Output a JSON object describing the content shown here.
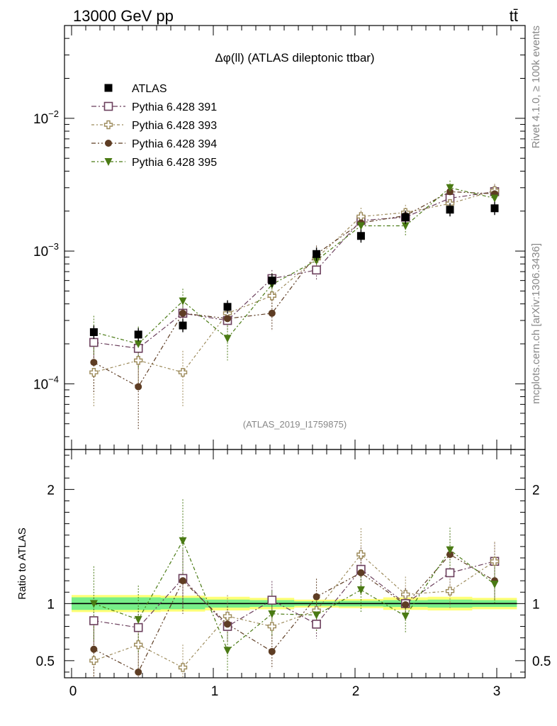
{
  "header": {
    "energy_label": "13000 GeV pp",
    "process_label": "tt̄"
  },
  "side_text": {
    "rivet": "Rivet 4.1.0, ≥ 100k events",
    "mcplots": "mcplots.cern.ch [arXiv:1306.3436]"
  },
  "chart_data": {
    "type": "scatter",
    "title": "Δφ(ll) (ATLAS dileptonic ttbar)",
    "watermark": "(ATLAS_2019_I1759875)",
    "xlabel": "",
    "ylabel_ratio": "Ratio to ATLAS",
    "xlim": [
      -0.05,
      3.2
    ],
    "ylim_main": [
      3.2e-05,
      0.05
    ],
    "ylim_ratio": [
      0.35,
      2.35
    ],
    "yscale_main": "log",
    "x_ticks": [
      "0",
      "1",
      "2",
      "3"
    ],
    "y_ticks_main": [
      "10^-4",
      "10^-3",
      "10^-2"
    ],
    "y_ticks_ratio": [
      "0.5",
      "1",
      "2"
    ],
    "legend_position": "top-left",
    "x": [
      0.157,
      0.471,
      0.785,
      1.1,
      1.414,
      1.728,
      2.042,
      2.356,
      2.67,
      2.985
    ],
    "bin_edges": [
      0.0,
      0.314,
      0.628,
      0.942,
      1.257,
      1.571,
      1.885,
      2.199,
      2.513,
      2.827,
      3.142
    ],
    "reference": {
      "name": "ATLAS",
      "values": [
        0.000245,
        0.000235,
        0.000275,
        0.00038,
        0.0006,
        0.00095,
        0.0013,
        0.0018,
        0.00205,
        0.0021
      ],
      "band_inner": [
        0.055,
        0.055,
        0.05,
        0.035,
        0.03,
        0.02,
        0.025,
        0.03,
        0.035,
        0.03
      ],
      "band_outer": [
        0.075,
        0.075,
        0.07,
        0.06,
        0.05,
        0.035,
        0.04,
        0.055,
        0.06,
        0.05
      ]
    },
    "series": [
      {
        "name": "Pythia 6.428 391",
        "color": "#6b3f5c",
        "marker": "open-square",
        "values": [
          0.000205,
          0.000185,
          0.00034,
          0.0003,
          0.00062,
          0.00072,
          0.0017,
          0.0018,
          0.0025,
          0.0028
        ],
        "errors": [
          5e-05,
          4e-05,
          7e-05,
          5e-05,
          0.0001,
          0.00012,
          0.00025,
          0.00025,
          0.00035,
          0.00035
        ],
        "ratio": [
          0.85,
          0.79,
          1.22,
          0.8,
          1.03,
          0.82,
          1.3,
          1.0,
          1.27,
          1.37
        ]
      },
      {
        "name": "Pythia 6.428 393",
        "color": "#9c8a5a",
        "marker": "open-cross",
        "values": [
          0.000122,
          0.00015,
          0.000122,
          0.00034,
          0.00046,
          0.00088,
          0.00182,
          0.00195,
          0.00228,
          0.00285
        ],
        "errors": [
          5.5e-05,
          6e-05,
          5.5e-05,
          7e-05,
          9e-05,
          0.00014,
          0.0003,
          0.00028,
          0.00033,
          0.00036
        ],
        "ratio": [
          0.5,
          0.64,
          0.44,
          0.89,
          0.8,
          0.94,
          1.43,
          1.08,
          1.11,
          1.37
        ]
      },
      {
        "name": "Pythia 6.428 394",
        "color": "#5e3d24",
        "marker": "filled-circle",
        "values": [
          0.000145,
          9.5e-05,
          0.00034,
          0.00031,
          0.00034,
          0.00095,
          0.00163,
          0.00185,
          0.0028,
          0.0027
        ],
        "errors": [
          6e-05,
          5e-05,
          8e-05,
          6e-05,
          9e-05,
          0.00015,
          0.00025,
          0.00025,
          0.00038,
          0.00036
        ],
        "ratio": [
          0.6,
          0.4,
          1.2,
          0.82,
          0.58,
          1.06,
          1.27,
          0.99,
          1.43,
          1.2
        ]
      },
      {
        "name": "Pythia 6.428 395",
        "color": "#4a7a14",
        "marker": "filled-triangle-down",
        "values": [
          0.000245,
          0.0002,
          0.00042,
          0.00022,
          0.00056,
          0.00085,
          0.00155,
          0.00155,
          0.003,
          0.0025
        ],
        "errors": [
          8e-05,
          7e-05,
          0.0001,
          7e-05,
          0.00012,
          0.00014,
          0.00025,
          0.00026,
          0.0004,
          0.00035
        ],
        "ratio": [
          1.0,
          0.86,
          1.55,
          0.59,
          0.91,
          0.9,
          1.12,
          0.89,
          1.47,
          1.17
        ]
      }
    ]
  }
}
